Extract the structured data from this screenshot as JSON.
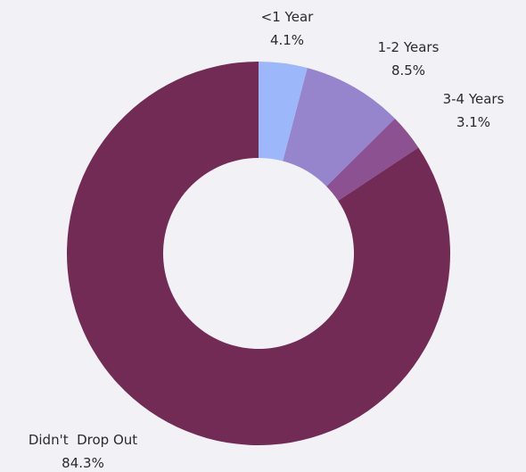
{
  "chart_data": {
    "type": "pie",
    "variant": "donut",
    "categories": [
      "<1 Year",
      "1-2 Years",
      "3-4 Years",
      "Didn't  Drop Out"
    ],
    "values": [
      4.1,
      8.5,
      3.1,
      84.3
    ],
    "value_labels": [
      "4.1%",
      "8.5%",
      "3.1%",
      "84.3%"
    ],
    "colors": [
      "#9db7fb",
      "#9685cd",
      "#8c5191",
      "#722b55"
    ],
    "title": "",
    "legend": "none",
    "start": "top, clockwise"
  }
}
